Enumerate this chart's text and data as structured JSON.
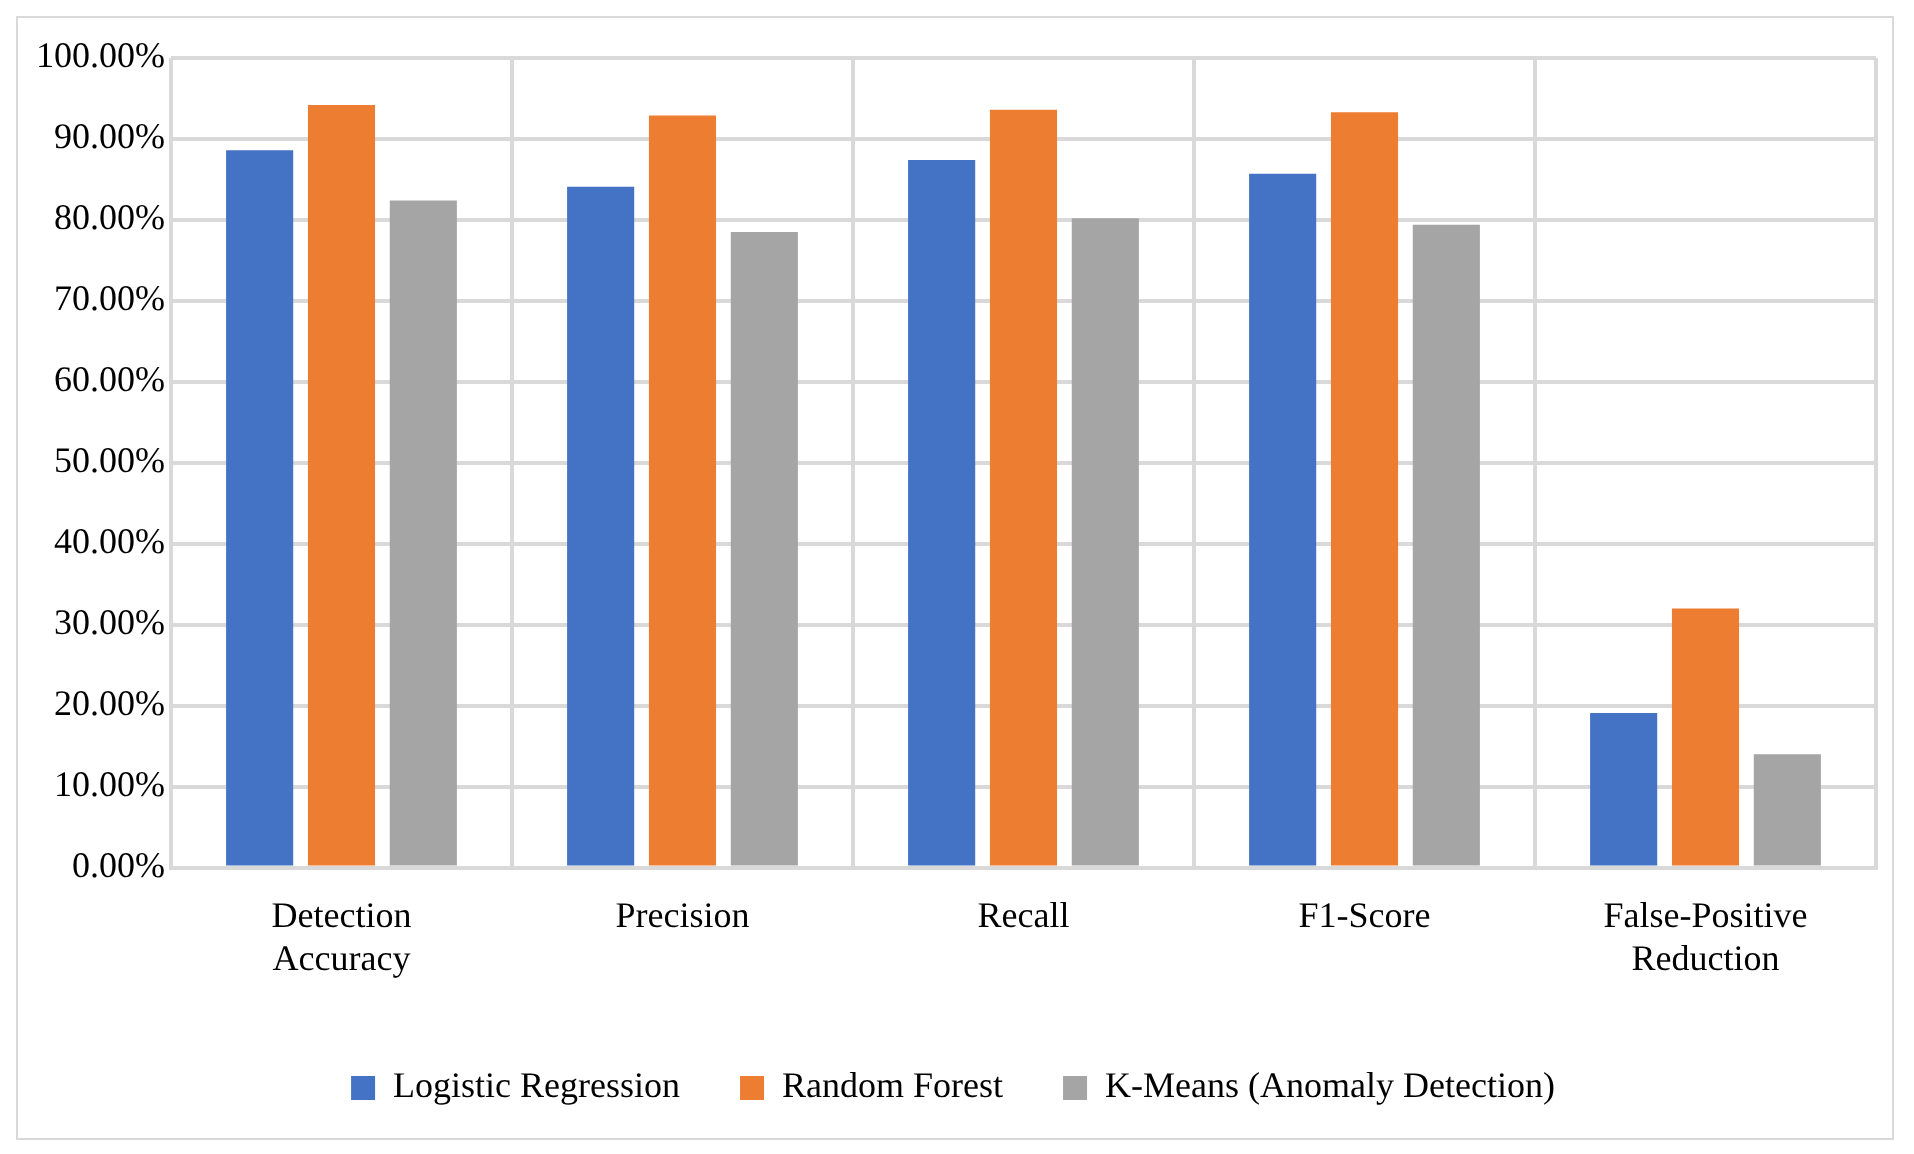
{
  "chart_data": {
    "type": "bar",
    "categories": [
      "Detection Accuracy",
      "Precision",
      "Recall",
      "F1-Score",
      "False-Positive Reduction"
    ],
    "series": [
      {
        "name": "Logistic Regression",
        "color": "#4472c4",
        "values": [
          88.6,
          84.1,
          87.4,
          85.7,
          19.1
        ]
      },
      {
        "name": "Random Forest",
        "color": "#ed7d31",
        "values": [
          94.2,
          92.9,
          93.6,
          93.3,
          32.0
        ]
      },
      {
        "name": "K-Means (Anomaly Detection)",
        "color": "#a5a5a5",
        "values": [
          82.4,
          78.5,
          80.2,
          79.4,
          14.0
        ]
      }
    ],
    "ylim": [
      0,
      100
    ],
    "yticks": [
      {
        "value": 0,
        "label": "0.00%"
      },
      {
        "value": 10,
        "label": "10.00%"
      },
      {
        "value": 20,
        "label": "20.00%"
      },
      {
        "value": 30,
        "label": "30.00%"
      },
      {
        "value": 40,
        "label": "40.00%"
      },
      {
        "value": 50,
        "label": "50.00%"
      },
      {
        "value": 60,
        "label": "60.00%"
      },
      {
        "value": 70,
        "label": "70.00%"
      },
      {
        "value": 80,
        "label": "80.00%"
      },
      {
        "value": 90,
        "label": "90.00%"
      },
      {
        "value": 100,
        "label": "100.00%"
      }
    ],
    "grid": true,
    "legend": "bottom"
  }
}
